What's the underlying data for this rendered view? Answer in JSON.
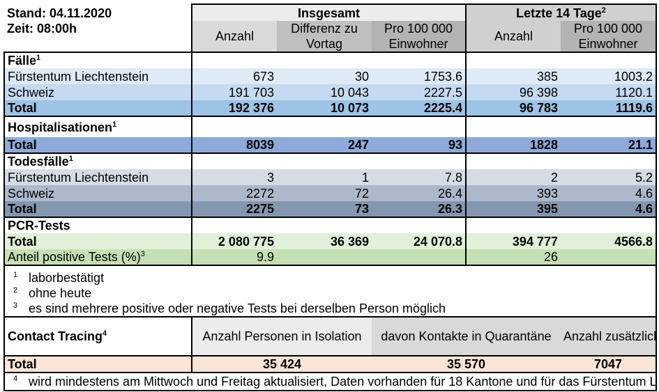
{
  "header": {
    "stand": "Stand: 04.11.2020",
    "zeit": "Zeit: 08:00h",
    "insgesamt": "Insgesamt",
    "letzte14": "Letzte 14 Tage",
    "letzte14_sup": "2",
    "col_anzahl": "Anzahl",
    "col_differenz": "Differenz zu Vortag",
    "col_pro100k": "Pro 100 000 Einwohner",
    "col_anzahl14": "Anzahl",
    "col_pro100k14": "Pro 100 000 Einwohner"
  },
  "faelle": {
    "title": "Fälle",
    "sup": "1",
    "rows": [
      {
        "label": "Fürstentum Liechtenstein",
        "anzahl": "673",
        "differenz": "30",
        "pro100k": "1753.6",
        "anzahl14": "385",
        "pro100k14": "1003.2"
      },
      {
        "label": "Schweiz",
        "anzahl": "191 703",
        "differenz": "10 043",
        "pro100k": "2227.5",
        "anzahl14": "96 398",
        "pro100k14": "1120.1"
      },
      {
        "label": "Total",
        "anzahl": "192 376",
        "differenz": "10 073",
        "pro100k": "2225.4",
        "anzahl14": "96 783",
        "pro100k14": "1119.6"
      }
    ]
  },
  "hosp": {
    "title": "Hospitalisationen",
    "sup": "1",
    "total": {
      "label": "Total",
      "anzahl": "8039",
      "differenz": "247",
      "pro100k": "93",
      "anzahl14": "1828",
      "pro100k14": "21.1"
    }
  },
  "tod": {
    "title": "Todesfälle",
    "sup": "1",
    "rows": [
      {
        "label": "Fürstentum Liechtenstein",
        "anzahl": "3",
        "differenz": "1",
        "pro100k": "7.8",
        "anzahl14": "2",
        "pro100k14": "5.2"
      },
      {
        "label": "Schweiz",
        "anzahl": "2272",
        "differenz": "72",
        "pro100k": "26.4",
        "anzahl14": "393",
        "pro100k14": "4.6"
      },
      {
        "label": "Total",
        "anzahl": "2275",
        "differenz": "73",
        "pro100k": "26.3",
        "anzahl14": "395",
        "pro100k14": "4.6"
      }
    ]
  },
  "pcr": {
    "title": "PCR-Tests",
    "total": {
      "label": "Total",
      "anzahl": "2 080 775",
      "differenz": "36 369",
      "pro100k": "24 070.8",
      "anzahl14": "394 777",
      "pro100k14": "4566.8"
    },
    "positiv": {
      "label": "Anteil positive Tests (%)",
      "sup": "3",
      "anzahl": "9.9",
      "anzahl14": "26"
    }
  },
  "footnotes": [
    {
      "num": "1",
      "text": "laborbestätigt"
    },
    {
      "num": "2",
      "text": "ohne heute"
    },
    {
      "num": "3",
      "text": "es sind mehrere positive oder negative Tests bei derselben Person möglich"
    }
  ],
  "contact": {
    "title": "Contact Tracing",
    "sup": "4",
    "col1": "Anzahl Personen in Isolation",
    "col2": "davon Kontakte in Quarantäne",
    "col3": "Anzahl zusätzlicher Personen in Quarantäne, die aus Risikoländern eingereist sind",
    "total_label": "Total",
    "val1": "35 424",
    "val2": "35 570",
    "val3": "7047"
  },
  "footnote4": {
    "num": "4",
    "text": "wird mindestens am Mittwoch und Freitag aktualisiert, Daten vorhanden für 18 Kantone und für das Fürstentum Liechtenstein."
  }
}
